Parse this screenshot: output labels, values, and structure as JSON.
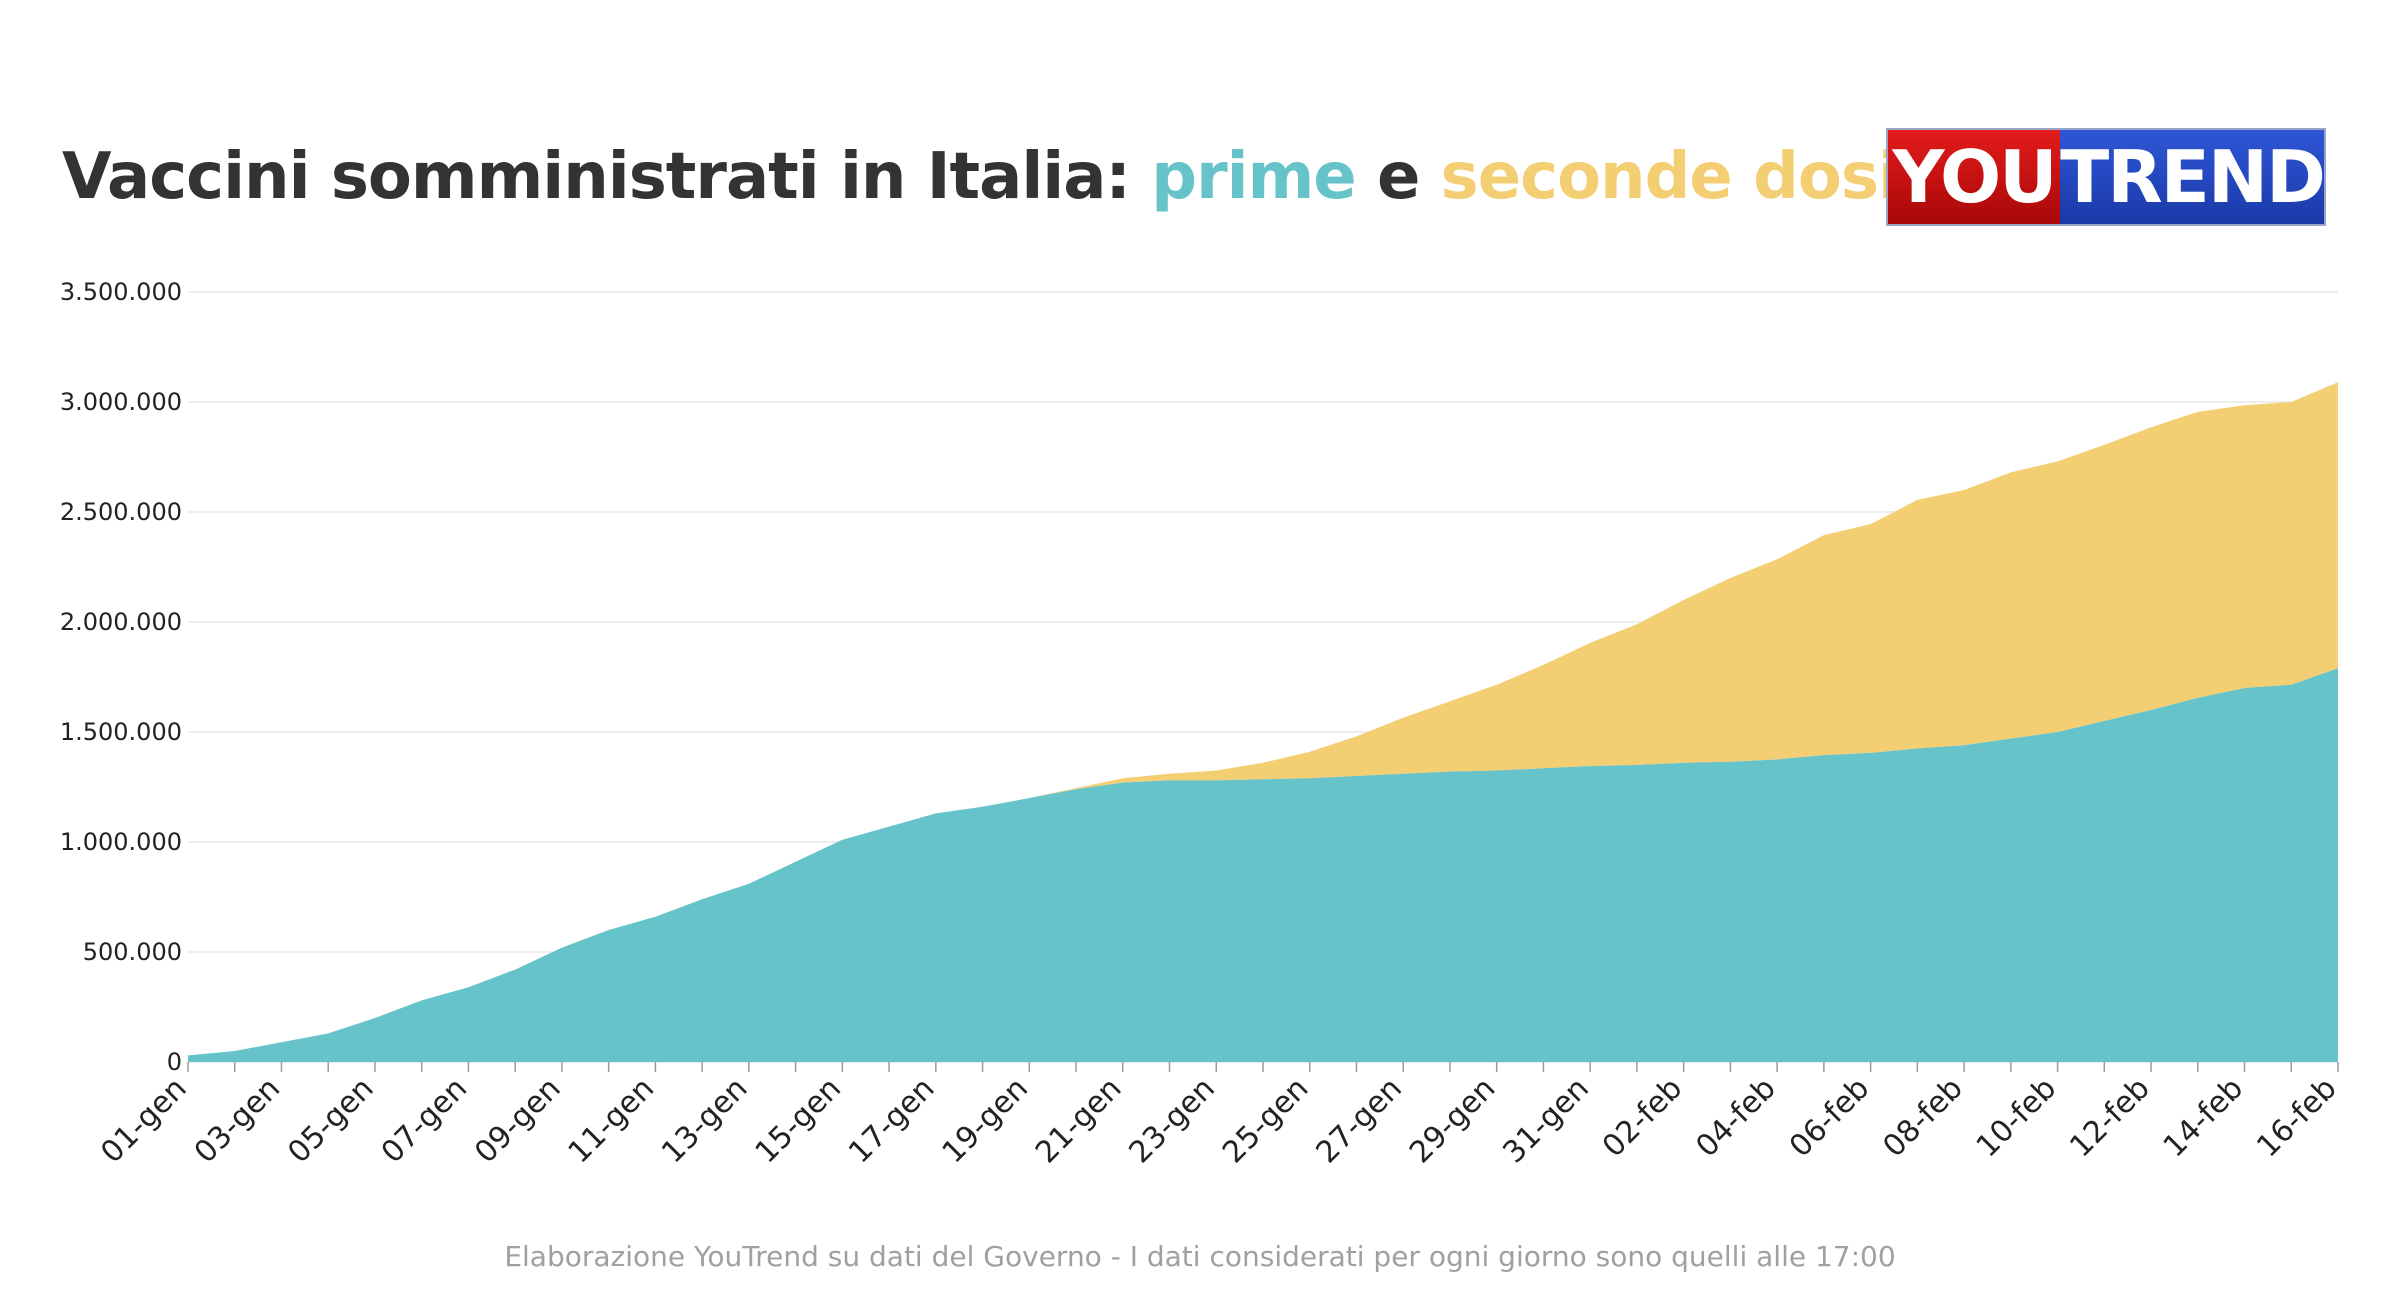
{
  "title": {
    "part1": "Vaccini somministrati in Italia: ",
    "first": "prime",
    "mid": " e ",
    "second": "seconde dosi"
  },
  "logo": {
    "left": "YOU",
    "right": "TREND"
  },
  "footnote": "Elaborazione YouTrend su dati del Governo - I dati considerati per ogni giorno sono quelli alle 17:00",
  "colors": {
    "first": "#66c3ca",
    "second": "#f4ce73",
    "grid": "#e8e8e8",
    "text": "#333333"
  },
  "chart_data": {
    "type": "area",
    "stacked": true,
    "x": [
      "01-gen",
      "02-gen",
      "03-gen",
      "04-gen",
      "05-gen",
      "06-gen",
      "07-gen",
      "08-gen",
      "09-gen",
      "10-gen",
      "11-gen",
      "12-gen",
      "13-gen",
      "14-gen",
      "15-gen",
      "16-gen",
      "17-gen",
      "18-gen",
      "19-gen",
      "20-gen",
      "21-gen",
      "22-gen",
      "23-gen",
      "24-gen",
      "25-gen",
      "26-gen",
      "27-gen",
      "28-gen",
      "29-gen",
      "30-gen",
      "31-gen",
      "01-feb",
      "02-feb",
      "03-feb",
      "04-feb",
      "05-feb",
      "06-feb",
      "07-feb",
      "08-feb",
      "09-feb",
      "10-feb",
      "11-feb",
      "12-feb",
      "13-feb",
      "14-feb",
      "15-feb",
      "16-feb"
    ],
    "x_tick_labels": [
      "01-gen",
      "03-gen",
      "05-gen",
      "07-gen",
      "09-gen",
      "11-gen",
      "13-gen",
      "15-gen",
      "17-gen",
      "19-gen",
      "21-gen",
      "23-gen",
      "25-gen",
      "27-gen",
      "29-gen",
      "31-gen",
      "02-feb",
      "04-feb",
      "06-feb",
      "08-feb",
      "10-feb",
      "12-feb",
      "14-feb",
      "16-feb"
    ],
    "series": [
      {
        "name": "prime",
        "color": "#66c3ca",
        "values": [
          30000,
          50000,
          90000,
          130000,
          200000,
          280000,
          340000,
          420000,
          520000,
          600000,
          660000,
          740000,
          810000,
          910000,
          1010000,
          1070000,
          1130000,
          1160000,
          1200000,
          1240000,
          1270000,
          1280000,
          1280000,
          1285000,
          1290000,
          1300000,
          1310000,
          1320000,
          1325000,
          1335000,
          1345000,
          1350000,
          1360000,
          1365000,
          1375000,
          1395000,
          1405000,
          1425000,
          1440000,
          1470000,
          1500000,
          1550000,
          1600000,
          1655000,
          1700000,
          1715000,
          1790000
        ]
      },
      {
        "name": "seconde dosi",
        "color": "#f4ce73",
        "values": [
          0,
          0,
          0,
          0,
          0,
          0,
          0,
          0,
          0,
          0,
          0,
          0,
          0,
          0,
          0,
          0,
          0,
          0,
          0,
          5000,
          20000,
          30000,
          45000,
          75000,
          120000,
          180000,
          255000,
          320000,
          390000,
          470000,
          560000,
          640000,
          740000,
          835000,
          910000,
          1000000,
          1040000,
          1130000,
          1160000,
          1210000,
          1230000,
          1255000,
          1285000,
          1300000,
          1285000,
          1285000,
          1300000
        ]
      }
    ],
    "y_ticks": [
      0,
      500000,
      1000000,
      1500000,
      2000000,
      2500000,
      3000000,
      3500000
    ],
    "y_tick_labels": [
      "0",
      "500.000",
      "1.000.000",
      "1.500.000",
      "2.000.000",
      "2.500.000",
      "3.000.000",
      "3.500.000"
    ],
    "ylim": [
      0,
      3500000
    ],
    "grid": true,
    "legend": "none"
  }
}
